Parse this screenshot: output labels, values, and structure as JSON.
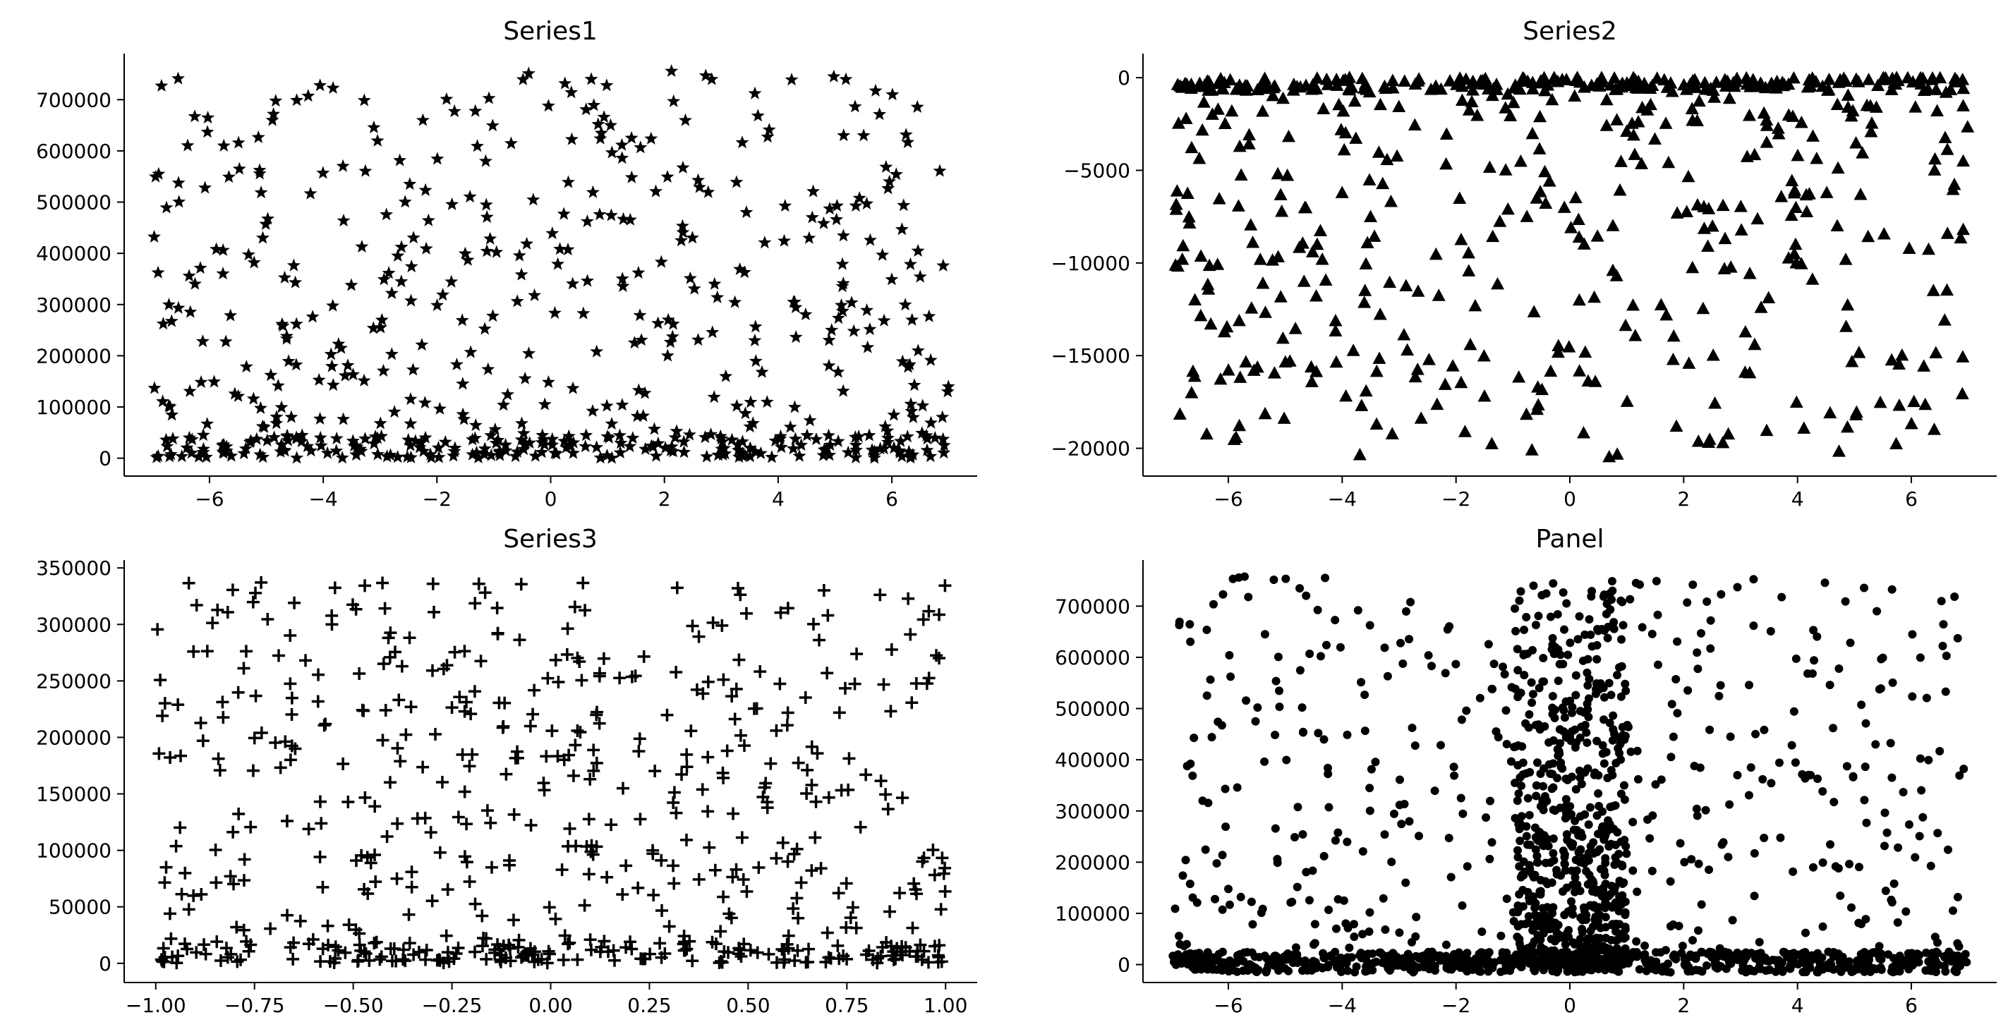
{
  "chart_data": [
    {
      "type": "scatter",
      "title": "Series1",
      "xlabel": "",
      "ylabel": "",
      "xlim": [
        -7.5,
        7.5
      ],
      "ylim": [
        -35000,
        790000
      ],
      "xticks": [
        -6,
        -4,
        -2,
        0,
        2,
        4,
        6
      ],
      "xtick_labels": [
        "−6",
        "−4",
        "−2",
        "0",
        "2",
        "4",
        "6"
      ],
      "yticks": [
        0,
        100000,
        200000,
        300000,
        400000,
        500000,
        600000,
        700000
      ],
      "ytick_labels": [
        "0",
        "100000",
        "200000",
        "300000",
        "400000",
        "500000",
        "600000",
        "700000"
      ],
      "marker": "star",
      "color": "#000000",
      "grid": false,
      "legend": "none",
      "generator": {
        "x_min": -7,
        "x_max": 7,
        "n": 600,
        "seed": 11,
        "shape": "series1"
      }
    },
    {
      "type": "scatter",
      "title": "Series2",
      "xlabel": "",
      "ylabel": "",
      "xlim": [
        -7.5,
        7.5
      ],
      "ylim": [
        -21500,
        1300
      ],
      "xticks": [
        -6,
        -4,
        -2,
        0,
        2,
        4,
        6
      ],
      "xtick_labels": [
        "−6",
        "−4",
        "−2",
        "0",
        "2",
        "4",
        "6"
      ],
      "yticks": [
        0,
        -5000,
        -10000,
        -15000,
        -20000
      ],
      "ytick_labels": [
        "0",
        "−5000",
        "−10000",
        "−15000",
        "−20000"
      ],
      "marker": "triangle",
      "color": "#000000",
      "grid": false,
      "legend": "none",
      "generator": {
        "x_min": -7,
        "x_max": 7,
        "n": 600,
        "seed": 23,
        "shape": "series2"
      }
    },
    {
      "type": "scatter",
      "title": "Series3",
      "xlabel": "",
      "ylabel": "",
      "xlim": [
        -1.08,
        1.08
      ],
      "ylim": [
        -17000,
        357000
      ],
      "xticks": [
        -1.0,
        -0.75,
        -0.5,
        -0.25,
        0.0,
        0.25,
        0.5,
        0.75,
        1.0
      ],
      "xtick_labels": [
        "−1.00",
        "−0.75",
        "−0.50",
        "−0.25",
        "0.00",
        "0.25",
        "0.50",
        "0.75",
        "1.00"
      ],
      "yticks": [
        0,
        50000,
        100000,
        150000,
        200000,
        250000,
        300000,
        350000
      ],
      "ytick_labels": [
        "0",
        "50000",
        "100000",
        "150000",
        "200000",
        "250000",
        "300000",
        "350000"
      ],
      "marker": "plus",
      "color": "#000000",
      "grid": false,
      "legend": "none",
      "generator": {
        "x_min": -1,
        "x_max": 1,
        "n": 600,
        "seed": 37,
        "shape": "series3"
      }
    },
    {
      "type": "scatter",
      "title": "Panel",
      "xlabel": "",
      "ylabel": "",
      "xlim": [
        -7.5,
        7.5
      ],
      "ylim": [
        -35000,
        790000
      ],
      "xticks": [
        -6,
        -4,
        -2,
        0,
        2,
        4,
        6
      ],
      "xtick_labels": [
        "−6",
        "−4",
        "−2",
        "0",
        "2",
        "4",
        "6"
      ],
      "yticks": [
        0,
        100000,
        200000,
        300000,
        400000,
        500000,
        600000,
        700000
      ],
      "ytick_labels": [
        "0",
        "100000",
        "200000",
        "300000",
        "400000",
        "500000",
        "600000",
        "700000"
      ],
      "marker": "circle",
      "color": "#000000",
      "grid": false,
      "legend": "none",
      "generator": {
        "x_min": -7,
        "x_max": 7,
        "n": 1800,
        "seed": 53,
        "shape": "panel"
      }
    }
  ]
}
